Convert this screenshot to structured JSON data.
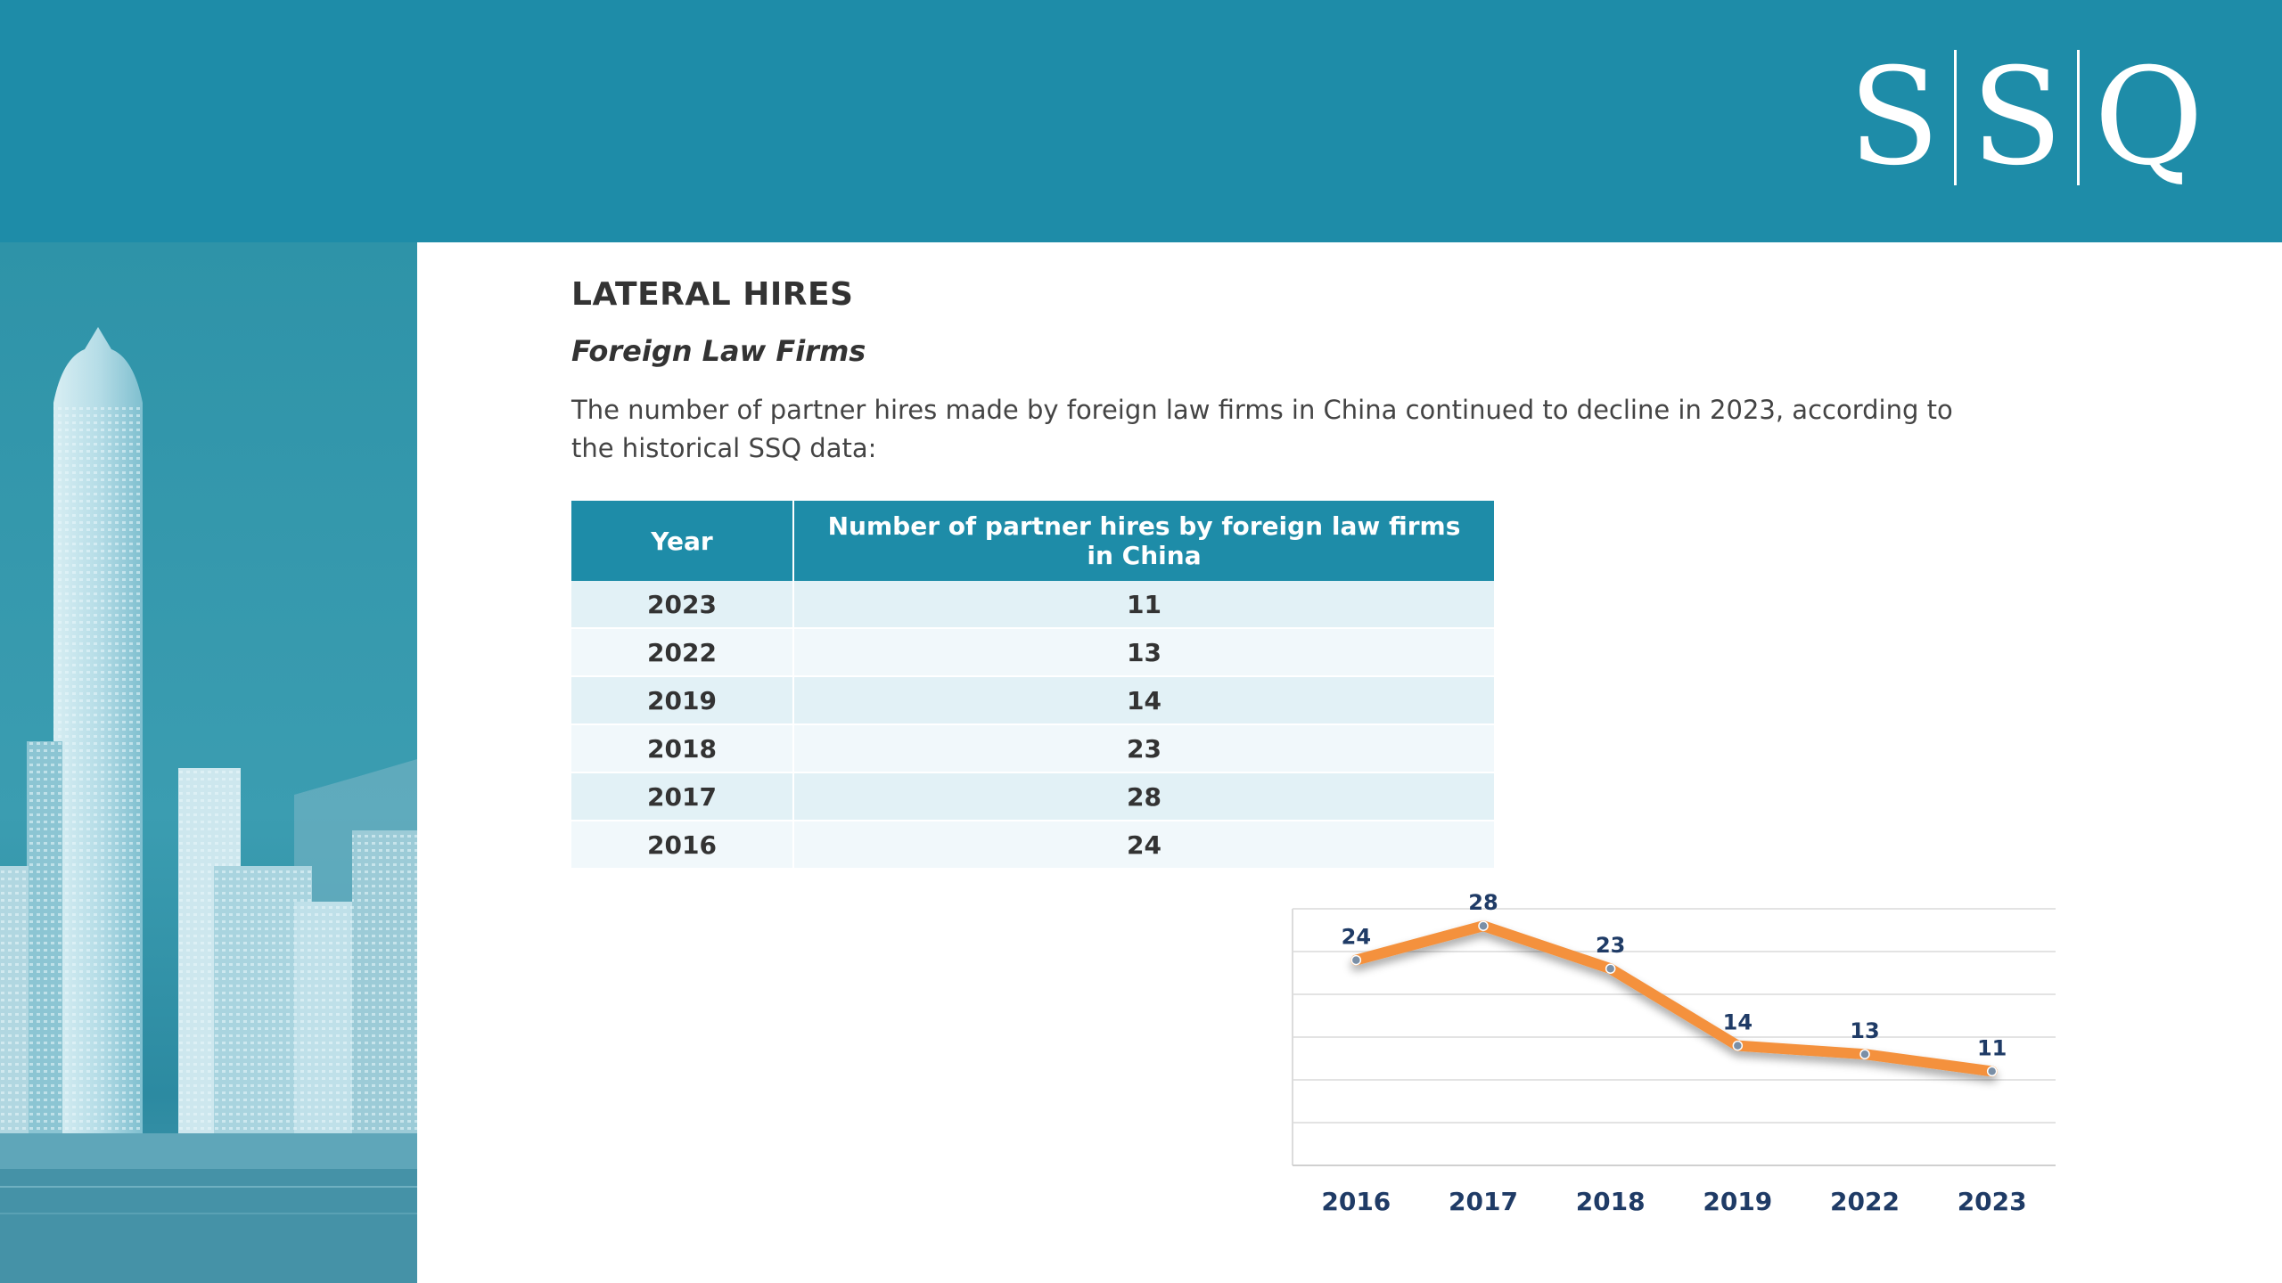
{
  "logo": {
    "letters": [
      "S",
      "S",
      "Q"
    ]
  },
  "colors": {
    "brand_teal": "#1e8ca8",
    "line_orange": "#f4913c",
    "label_navy": "#1f3b66"
  },
  "section": {
    "title": "LATERAL HIRES",
    "subtitle": "Foreign Law Firms",
    "paragraph": "The number of partner hires made by foreign law firms in China continued to decline in 2023, according to the historical SSQ data:"
  },
  "table": {
    "headers": [
      "Year",
      "Number of partner hires by foreign law firms in China"
    ],
    "rows": [
      [
        "2023",
        "11"
      ],
      [
        "2022",
        "13"
      ],
      [
        "2019",
        "14"
      ],
      [
        "2018",
        "23"
      ],
      [
        "2017",
        "28"
      ],
      [
        "2016",
        "24"
      ]
    ]
  },
  "chart_data": {
    "type": "line",
    "categories": [
      "2016",
      "2017",
      "2018",
      "2019",
      "2022",
      "2023"
    ],
    "series": [
      {
        "values": [
          24,
          28,
          23,
          14,
          13,
          11
        ]
      }
    ],
    "title": "",
    "xlabel": "",
    "ylabel": "",
    "ylim": [
      0,
      30
    ],
    "grid": true,
    "data_labels": true,
    "legend": "none"
  }
}
